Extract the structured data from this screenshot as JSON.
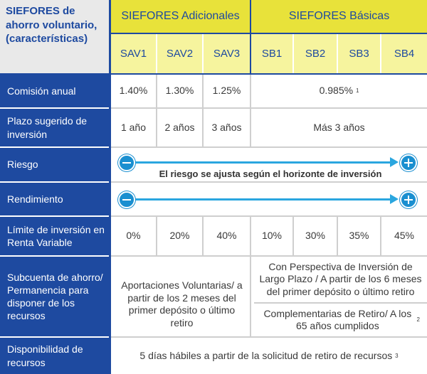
{
  "corner_title": "SIEFORES de ahorro voluntario, (características)",
  "groups": {
    "adicionales": "SIEFORES Adicionales",
    "basicas": "SIEFORES Básicas"
  },
  "columns": [
    "SAV1",
    "SAV2",
    "SAV3",
    "SB1",
    "SB2",
    "SB3",
    "SB4"
  ],
  "rows": {
    "comision": {
      "label": "Comisión anual",
      "values": [
        "1.40%",
        "1.30%",
        "1.25%"
      ],
      "basicas": "0.985%",
      "basicas_note": "1"
    },
    "plazo": {
      "label": "Plazo sugerido de inversión",
      "values": [
        "1 año",
        "2 años",
        "3 años"
      ],
      "basicas": "Más 3 años"
    },
    "riesgo": {
      "label": "Riesgo",
      "caption": "El riesgo se ajusta según el horizonte de inversión"
    },
    "rendimiento": {
      "label": "Rendimiento"
    },
    "limite": {
      "label": "Límite de inversión en Renta Variable",
      "values": [
        "0%",
        "20%",
        "40%",
        "10%",
        "30%",
        "35%",
        "45%"
      ]
    },
    "subcuenta": {
      "label": "Subcuenta de ahorro/ Permanencia para disponer de los recursos",
      "adicionales": "Aportaciones Voluntarias/ a partir de los 2 meses del primer depósito o último retiro",
      "basicas_top": "Con Perspectiva de Inversión de Largo Plazo / A partir de los 6 meses del primer depósito o último retiro",
      "basicas_bottom": "Complementarias de Retiro/ A los 65 años cumplidos",
      "basicas_bottom_note": "2"
    },
    "disponibilidad": {
      "label": "Disponibilidad de recursos",
      "value": "5 días hábiles a partir de la solicitud de retiro de recursos",
      "note": "3"
    }
  },
  "colors": {
    "label_bg": "#1e4aa0",
    "header_bg": "#e8e23a",
    "subheader_bg": "#f6f49e",
    "arrow": "#2aa6df"
  },
  "icons": {
    "minus": "minus-circle-icon",
    "plus": "plus-circle-icon"
  }
}
